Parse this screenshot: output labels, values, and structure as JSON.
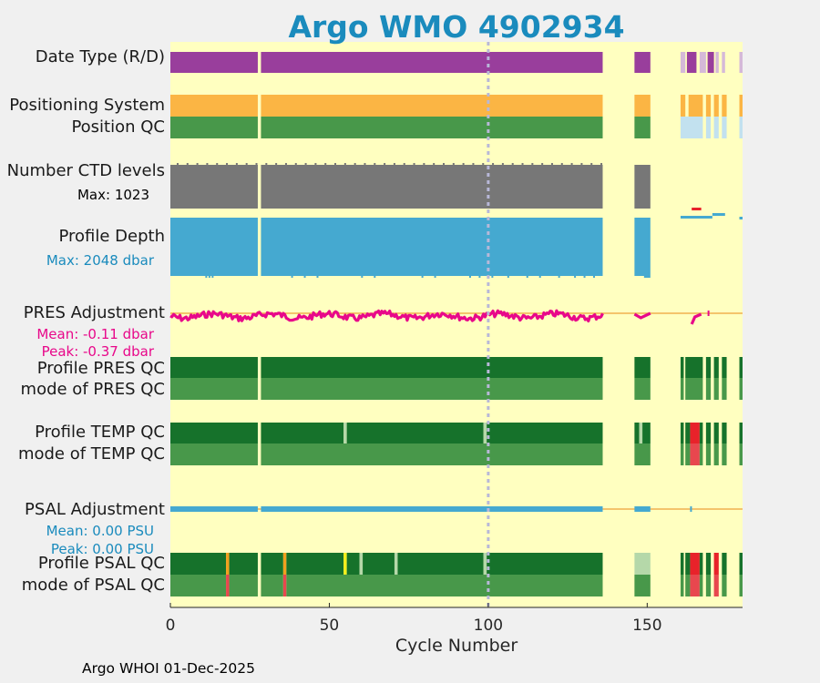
{
  "chart_data": {
    "type": "status-timeline",
    "title": "Argo WMO 4902934",
    "xlabel": "Cycle Number",
    "xlim": [
      0,
      180
    ],
    "xticks": [
      0,
      50,
      100,
      150
    ],
    "reference_line_x": 100,
    "footer": "Argo WHOI 01-Dec-2025",
    "rows": [
      {
        "name": "Date Type (R/D)",
        "segments": [
          [
            0,
            27.5,
            "#993e9c"
          ],
          [
            28.5,
            136,
            "#993e9c"
          ],
          [
            146,
            151,
            "#993e9c"
          ],
          [
            160.5,
            162,
            "#d5b9d8"
          ],
          [
            162.5,
            165.5,
            "#993e9c"
          ],
          [
            166.5,
            168.5,
            "#d5b9d8"
          ],
          [
            169,
            171,
            "#993e9c"
          ],
          [
            171.5,
            172.5,
            "#d5b9d8"
          ],
          [
            173.5,
            174.5,
            "#d5b9d8"
          ],
          [
            179,
            180,
            "#d5b9d8"
          ]
        ]
      },
      {
        "name": "Positioning System",
        "segments": [
          [
            0,
            27.5,
            "#fbb544"
          ],
          [
            28.5,
            136,
            "#fbb544"
          ],
          [
            146,
            151,
            "#fbb544"
          ],
          [
            160.5,
            162,
            "#fbb544"
          ],
          [
            163,
            167.5,
            "#fbb544"
          ],
          [
            168.5,
            170,
            "#fbb544"
          ],
          [
            171,
            172.5,
            "#fbb544"
          ],
          [
            173.5,
            175,
            "#fbb544"
          ],
          [
            179,
            180,
            "#fbb544"
          ]
        ]
      },
      {
        "name": "Position QC",
        "segments": [
          [
            0,
            27.5,
            "#48984a"
          ],
          [
            28.5,
            136,
            "#48984a"
          ],
          [
            146,
            151,
            "#48984a"
          ],
          [
            160.5,
            167.5,
            "#c2e1ef"
          ],
          [
            168.5,
            170,
            "#c2e1ef"
          ],
          [
            171,
            172.5,
            "#c2e1ef"
          ],
          [
            173.5,
            175,
            "#c2e1ef"
          ],
          [
            179,
            180,
            "#c2e1ef"
          ]
        ]
      },
      {
        "name": "Number CTD levels",
        "stat": "Max: 1023",
        "segments": [
          [
            0,
            27.5,
            "#777777"
          ],
          [
            28.5,
            136,
            "#777777"
          ],
          [
            146,
            151,
            "#777777"
          ]
        ]
      },
      {
        "name": "Profile Depth",
        "stat": "Max: 2048 dbar",
        "segments": [
          [
            0,
            27.5,
            "#45a9d0"
          ],
          [
            28.5,
            136,
            "#45a9d0"
          ],
          [
            146,
            151,
            "#45a9d0"
          ]
        ]
      },
      {
        "name": "PRES Adjustment",
        "stat1": "Mean: -0.11 dbar",
        "stat2": "Peak: -0.37 dbar",
        "segments": []
      },
      {
        "name": "Profile PRES QC",
        "segments": [
          [
            0,
            27.5,
            "#16722b"
          ],
          [
            28.5,
            136,
            "#16722b"
          ],
          [
            146,
            151,
            "#16722b"
          ],
          [
            160.5,
            161.5,
            "#16722b"
          ],
          [
            162,
            167.5,
            "#16722b"
          ],
          [
            168.5,
            170,
            "#16722b"
          ],
          [
            171,
            172.5,
            "#16722b"
          ],
          [
            173.5,
            175,
            "#16722b"
          ],
          [
            179,
            180,
            "#16722b"
          ]
        ]
      },
      {
        "name": "mode of PRES QC",
        "segments": [
          [
            0,
            27.5,
            "#48984a"
          ],
          [
            28.5,
            136,
            "#48984a"
          ],
          [
            146,
            151,
            "#48984a"
          ],
          [
            160.5,
            161.5,
            "#48984a"
          ],
          [
            162,
            167.5,
            "#48984a"
          ],
          [
            168.5,
            170,
            "#48984a"
          ],
          [
            171,
            172.5,
            "#48984a"
          ],
          [
            173.5,
            175,
            "#48984a"
          ],
          [
            179,
            180,
            "#48984a"
          ]
        ]
      },
      {
        "name": "Profile TEMP QC",
        "segments": [
          [
            0,
            27.5,
            "#16722b"
          ],
          [
            28.5,
            54.5,
            "#16722b"
          ],
          [
            54.5,
            55.5,
            "#b5d8a9"
          ],
          [
            55.5,
            98.5,
            "#16722b"
          ],
          [
            98.5,
            99.5,
            "#b5d8a9"
          ],
          [
            99.5,
            136,
            "#16722b"
          ],
          [
            146,
            147.5,
            "#16722b"
          ],
          [
            147.5,
            148.5,
            "#b5d8a9"
          ],
          [
            148.5,
            151,
            "#16722b"
          ],
          [
            160.5,
            161.5,
            "#16722b"
          ],
          [
            162,
            163.5,
            "#16722b"
          ],
          [
            163.5,
            166.5,
            "#e8222a"
          ],
          [
            166.5,
            167.5,
            "#16722b"
          ],
          [
            168.5,
            170,
            "#16722b"
          ],
          [
            171,
            172.5,
            "#16722b"
          ],
          [
            173.5,
            175,
            "#16722b"
          ],
          [
            179,
            180,
            "#16722b"
          ]
        ]
      },
      {
        "name": "mode of TEMP QC",
        "segments": [
          [
            0,
            27.5,
            "#48984a"
          ],
          [
            28.5,
            136,
            "#48984a"
          ],
          [
            146,
            151,
            "#48984a"
          ],
          [
            160.5,
            161.5,
            "#48984a"
          ],
          [
            162,
            163.5,
            "#48984a"
          ],
          [
            163.5,
            166.5,
            "#e8474e"
          ],
          [
            166.5,
            167.5,
            "#48984a"
          ],
          [
            168.5,
            170,
            "#48984a"
          ],
          [
            171,
            172.5,
            "#48984a"
          ],
          [
            173.5,
            175,
            "#48984a"
          ],
          [
            179,
            180,
            "#48984a"
          ]
        ]
      },
      {
        "name": "PSAL Adjustment",
        "stat1": "Mean: 0.00 PSU",
        "stat2": "Peak: 0.00 PSU",
        "segments": []
      },
      {
        "name": "Profile PSAL QC",
        "segments": [
          [
            0,
            17.5,
            "#16722b"
          ],
          [
            17.5,
            18.5,
            "#f0a01e"
          ],
          [
            18.5,
            27.5,
            "#16722b"
          ],
          [
            28.5,
            35.5,
            "#16722b"
          ],
          [
            35.5,
            36.5,
            "#f0a01e"
          ],
          [
            36.5,
            54.5,
            "#16722b"
          ],
          [
            54.5,
            55.5,
            "#f3ef1a"
          ],
          [
            55.5,
            59.5,
            "#16722b"
          ],
          [
            59.5,
            60.5,
            "#b5d8a9"
          ],
          [
            60.5,
            70.5,
            "#16722b"
          ],
          [
            70.5,
            71.5,
            "#b5d8a9"
          ],
          [
            71.5,
            98.5,
            "#16722b"
          ],
          [
            98.5,
            99.5,
            "#b5d8a9"
          ],
          [
            99.5,
            136,
            "#16722b"
          ],
          [
            146,
            151,
            "#b5d8a9"
          ],
          [
            160.5,
            161.5,
            "#16722b"
          ],
          [
            162,
            163.5,
            "#16722b"
          ],
          [
            163.5,
            166.5,
            "#e8222a"
          ],
          [
            166.5,
            167.5,
            "#16722b"
          ],
          [
            168.5,
            170,
            "#16722b"
          ],
          [
            171,
            172.5,
            "#e8222a"
          ],
          [
            173.5,
            175,
            "#16722b"
          ],
          [
            179,
            180,
            "#16722b"
          ]
        ]
      },
      {
        "name": "mode of PSAL QC",
        "segments": [
          [
            0,
            17.5,
            "#48984a"
          ],
          [
            17.5,
            18.5,
            "#e8474e"
          ],
          [
            18.5,
            27.5,
            "#48984a"
          ],
          [
            28.5,
            35.5,
            "#48984a"
          ],
          [
            35.5,
            36.5,
            "#e8474e"
          ],
          [
            36.5,
            136,
            "#48984a"
          ],
          [
            146,
            151,
            "#48984a"
          ],
          [
            160.5,
            161.5,
            "#48984a"
          ],
          [
            162,
            163.5,
            "#48984a"
          ],
          [
            163.5,
            166.5,
            "#e8474e"
          ],
          [
            166.5,
            167.5,
            "#48984a"
          ],
          [
            168.5,
            170,
            "#48984a"
          ],
          [
            171,
            172.5,
            "#e8474e"
          ],
          [
            173.5,
            175,
            "#48984a"
          ],
          [
            179,
            180,
            "#48984a"
          ]
        ]
      }
    ],
    "pres_adjustment_baseline": 0,
    "colors": {
      "background": "#ffffc0",
      "title": "#1a8bbd",
      "pres_stat": "#e8088a",
      "psal_stat": "#1a8bbd",
      "baseline": "#f0b050",
      "psal_segment": "#45a9d0",
      "ref_line": "#b8b8d8"
    }
  }
}
